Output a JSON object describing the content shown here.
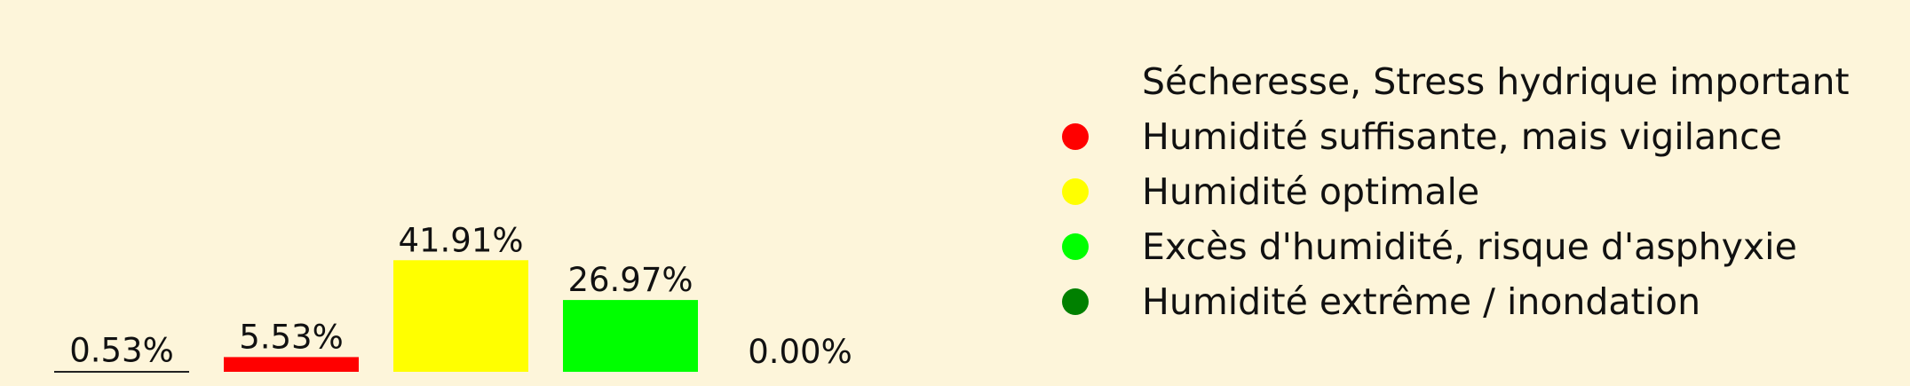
{
  "chart_data": {
    "type": "bar",
    "categories": [
      "Sécheresse, Stress hydrique important",
      "Humidité suffisante, mais vigilance",
      "Humidité optimale",
      "Excès d'humidité, risque d'asphyxie",
      "Humidité extrême / inondation"
    ],
    "values": [
      0.53,
      5.53,
      41.91,
      26.97,
      0.0
    ],
    "value_labels": [
      "0.53%",
      "5.53%",
      "41.91%",
      "26.97%",
      "0.00%"
    ],
    "colors": [
      "#fdf5da",
      "#ff0000",
      "#ffff00",
      "#00ff00",
      "#008000"
    ],
    "legend": {
      "placement": "right",
      "entries": [
        {
          "label": "Sécheresse, Stress hydrique important",
          "color": "#fdf5da"
        },
        {
          "label": "Humidité suffisante, mais vigilance",
          "color": "#ff0000"
        },
        {
          "label": "Humidité optimale",
          "color": "#ffff00"
        },
        {
          "label": "Excès d'humidité, risque d'asphyxie",
          "color": "#00ff00"
        },
        {
          "label": "Humidité extrême / inondation",
          "color": "#008000"
        }
      ]
    },
    "baseline_under_first_bar": true,
    "grid": false,
    "axes_visible": false,
    "title": "",
    "xlabel": "",
    "ylabel": ""
  },
  "colors": {
    "background": "#fdf5da",
    "text": "#111111"
  }
}
